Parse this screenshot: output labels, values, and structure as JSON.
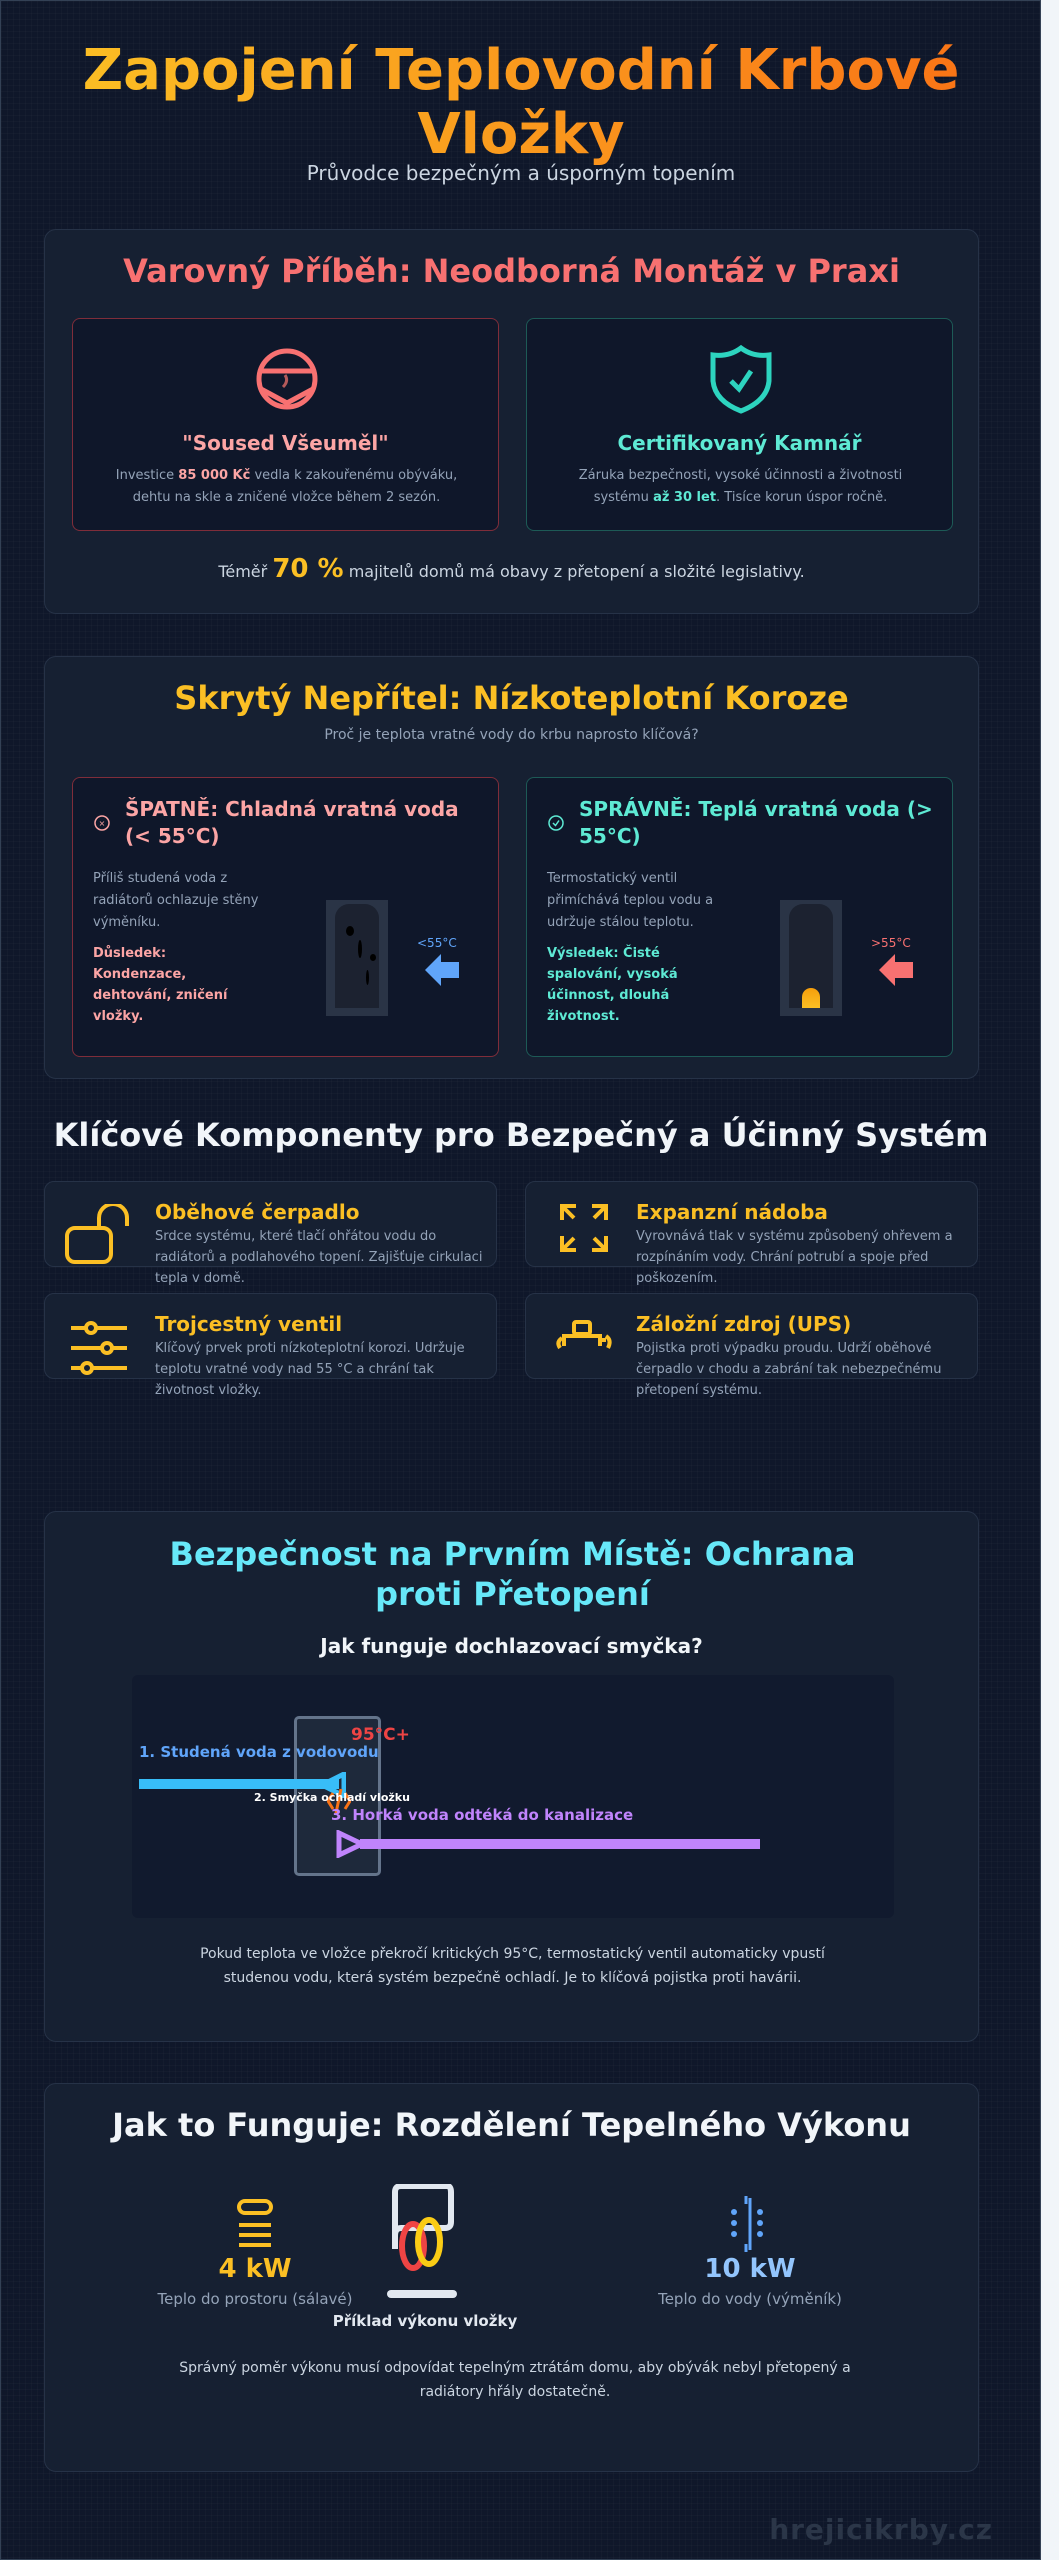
{
  "header": {
    "title": "Zapojení Teplovodní Krbové Vložky",
    "subtitle": "Průvodce bezpečným a úsporným topením"
  },
  "warning": {
    "title": "Varovný Příběh: Neodborná Montáž v Praxi",
    "bad": {
      "icon": "broken-fireplace-icon",
      "title": "\"Soused Všeuměl\"",
      "text_before": "Investice ",
      "highlight": "85 000 Kč",
      "text_after": " vedla k zakouřenému obýváku, dehtu na skle a zničené vložce během 2 sezón."
    },
    "good": {
      "icon": "shield-check-icon",
      "title": "Certifikovaný Kamnář",
      "text_before": "Záruka bezpečnosti, vysoké účinnosti a životnosti systému ",
      "highlight": "až 30 let",
      "text_after": ". Tisíce korun úspor ročně."
    },
    "stat": {
      "before": "Téměř ",
      "value": "70 %",
      "after": " majitelů domů má obavy z přetopení a složité legislativy."
    }
  },
  "corrosion": {
    "title": "Skrytý Nepřítel: Nízkoteplotní Koroze",
    "subtitle": "Proč je teplota vratné vody do krbu naprosto klíčová?",
    "bad": {
      "title": "ŠPATNĚ: Chladná vratná voda (< 55°C)",
      "text": "Příliš studená voda z radiátorů ochlazuje stěny výměníku.",
      "result": "Důsledek: Kondenzace, dehtování, zničení vložky.",
      "temp": "<55°C"
    },
    "good": {
      "title": "SPRÁVNĚ: Teplá vratná voda (> 55°C)",
      "text": "Termostatický ventil přimíchává teplou vodu a udržuje stálou teplotu.",
      "result": "Výsledek: Čisté spalování, vysoká účinnost, dlouhá životnost.",
      "temp": ">55°C"
    }
  },
  "components": {
    "title": "Klíčové Komponenty pro Bezpečný a Účinný Systém",
    "items": [
      {
        "icon": "unlock-icon",
        "title": "Oběhové čerpadlo",
        "text": "Srdce systému, které tlačí ohřátou vodu do radiátorů a podlahového topení. Zajišťuje cirkulaci tepla v domě."
      },
      {
        "icon": "expand-arrows-icon",
        "title": "Expanzní nádoba",
        "text": "Vyrovnává tlak v systému způsobený ohřevem a rozpínáním vody. Chrání potrubí a spoje před poškozením."
      },
      {
        "icon": "sliders-icon",
        "title": "Trojcestný ventil",
        "text": "Klíčový prvek proti nízkoteplotní korozi. Udržuje teplotu vratné vody nad 55 °C a chrání tak životnost vložky."
      },
      {
        "icon": "plug-icon",
        "title": "Záložní zdroj (UPS)",
        "text": "Pojistka proti výpadku proudu. Udrží oběhové čerpadlo v chodu a zabrání tak nebezpečnému přetopení systému."
      }
    ]
  },
  "safety": {
    "title": "Bezpečnost na Prvním Místě: Ochrana proti Přetopení",
    "subtitle": "Jak funguje dochlazovací smyčka?",
    "diagram": {
      "temp": "95°C+",
      "step1": "1. Studená voda z vodovodu",
      "step2": "2. Smyčka ochladí vložku",
      "step3": "3. Horká voda odtéká do kanalizace"
    },
    "text": "Pokud teplota ve vložce překročí kritických 95°C, termostatický ventil automaticky vpustí studenou vodu, která systém bezpečně ochladí. Je to klíčová pojistka proti havárii."
  },
  "power": {
    "title": "Jak to Funguje: Rozdělení Tepelného Výkonu",
    "space": {
      "value": "4 kW",
      "label": "Teplo do prostoru (sálavé)"
    },
    "center": {
      "label": "Příklad výkonu vložky"
    },
    "water": {
      "value": "10 kW",
      "label": "Teplo do vody (výměník)"
    },
    "text": "Správný poměr výkonu musí odpovídat tepelným ztrátám domu, aby obývák nebyl přetopený a radiátory hřály dostatečně."
  },
  "footer": {
    "watermark": "hrejicikrby.cz"
  },
  "colors": {
    "red": "#f87171",
    "teal": "#2dd4bf",
    "yellow": "#fbbf24",
    "cyan": "#67e8f9",
    "blue": "#60a5fa",
    "purple": "#c084fc"
  }
}
